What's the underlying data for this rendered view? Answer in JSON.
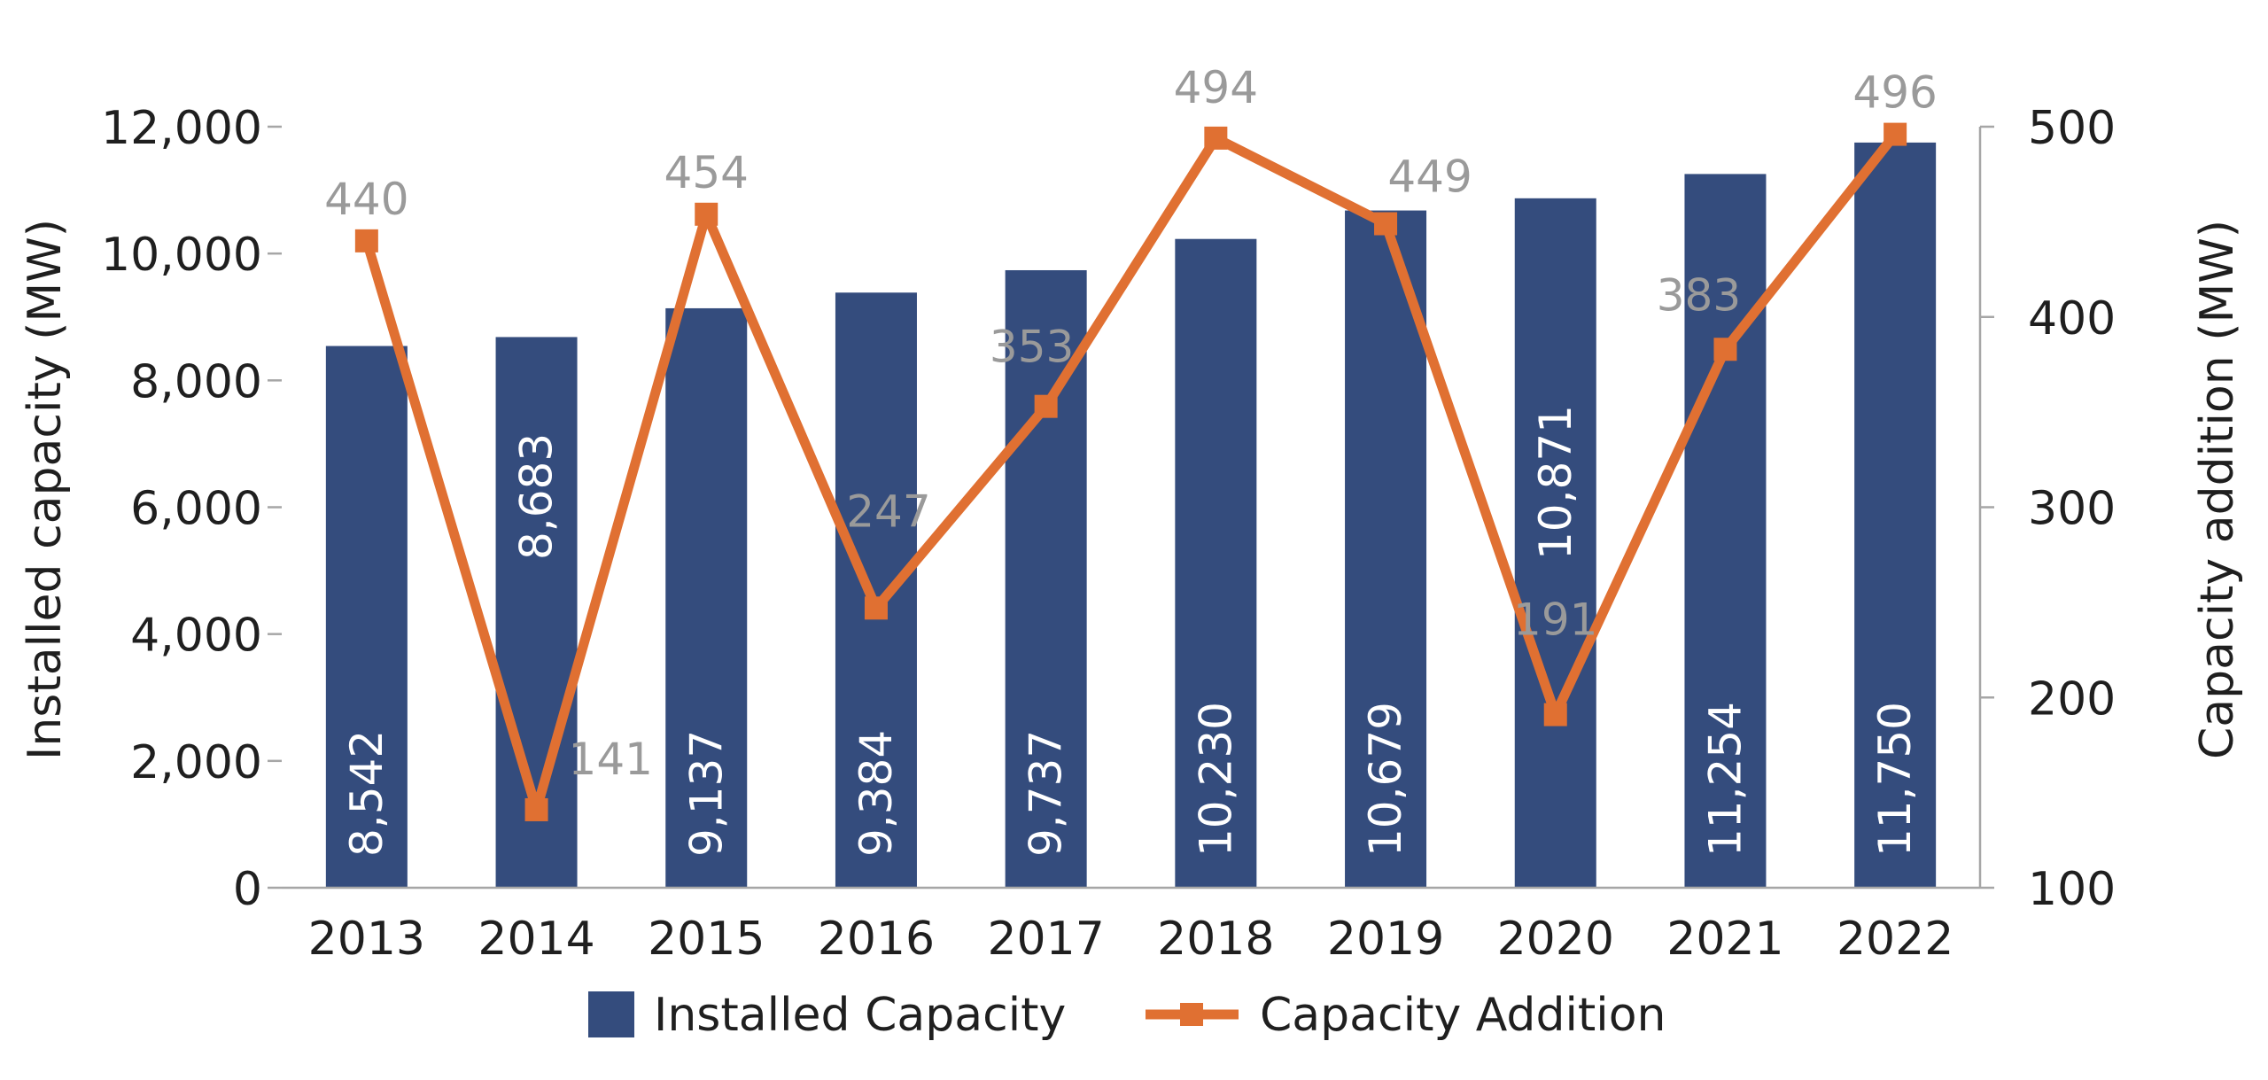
{
  "chart_data": {
    "type": "bar",
    "title": "",
    "categories": [
      "2013",
      "2014",
      "2015",
      "2016",
      "2017",
      "2018",
      "2019",
      "2020",
      "2021",
      "2022"
    ],
    "series": [
      {
        "name": "Installed Capacity",
        "type": "bar",
        "axis": "left",
        "color": "#344c7d",
        "values": [
          8542,
          8683,
          9137,
          9384,
          9737,
          10230,
          10679,
          10871,
          11254,
          11750
        ],
        "labels": [
          "8,542",
          "8,683",
          "9,137",
          "9,384",
          "9,737",
          "10,230",
          "10,679",
          "10,871",
          "11,254",
          "11,750"
        ]
      },
      {
        "name": "Capacity Addition",
        "type": "line",
        "axis": "right",
        "color": "#e07032",
        "marker": "square",
        "values": [
          440,
          141,
          454,
          247,
          353,
          494,
          449,
          191,
          383,
          496
        ],
        "labels": [
          "440",
          "141",
          "454",
          "247",
          "353",
          "494",
          "449",
          "191",
          "383",
          "496"
        ]
      }
    ],
    "y_left": {
      "label": "Installed capacity (MW)",
      "ylim": [
        0,
        12000
      ],
      "ticks": [
        0,
        2000,
        4000,
        6000,
        8000,
        10000,
        12000
      ],
      "tick_labels": [
        "0",
        "2,000",
        "4,000",
        "6,000",
        "8,000",
        "10,000",
        "12,000"
      ]
    },
    "y_right": {
      "label": "Capacity addition (MW)",
      "ylim": [
        100,
        500
      ],
      "ticks": [
        100,
        200,
        300,
        400,
        500
      ],
      "tick_labels": [
        "100",
        "200",
        "300",
        "400",
        "500"
      ]
    },
    "xlabel": "",
    "grid": false,
    "legend_position": "bottom"
  }
}
